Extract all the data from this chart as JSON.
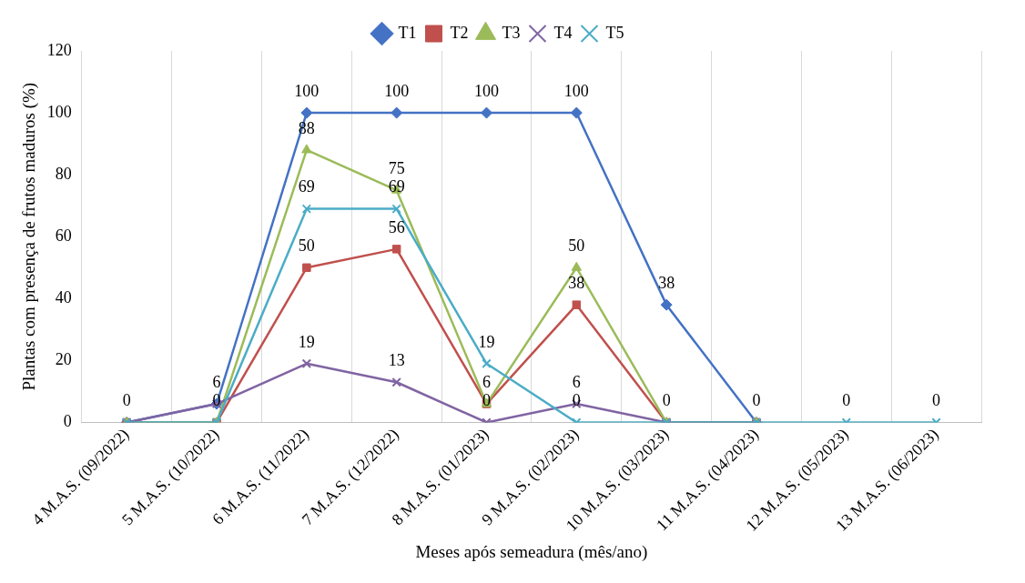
{
  "chart_data": {
    "type": "line",
    "xlabel": "Meses após semeadura (mês/ano)",
    "ylabel": "Plantas com presença de frutos maduros (%)",
    "categories": [
      "4 M.A.S. (09/2022)",
      "5 M.A.S. (10/2022)",
      "6 M.A.S. (11/2022)",
      "7 M.A.S. (12/2022)",
      "8 M.A.S. (01/2023)",
      "9 M.A.S. (02/2023)",
      "10 M.A.S. (03/2023)",
      "11 M.A.S. (04/2023)",
      "12 M.A.S. (05/2023)",
      "13 M.A.S. (06/2023)"
    ],
    "series": [
      {
        "name": "T1",
        "color": "#4472c4",
        "marker": "diamond",
        "values": [
          0,
          6,
          100,
          100,
          100,
          100,
          38,
          0,
          null,
          null
        ],
        "value_labels": [
          "0",
          "6",
          "100",
          "100",
          "100",
          "100",
          "38",
          "0",
          null,
          null
        ]
      },
      {
        "name": "T2",
        "color": "#c0504d",
        "marker": "square",
        "values": [
          0,
          0,
          50,
          56,
          6,
          38,
          0,
          0,
          null,
          null
        ],
        "value_labels": [
          null,
          "0",
          "50",
          "56",
          "6",
          "38",
          "0",
          null,
          null,
          null
        ]
      },
      {
        "name": "T3",
        "color": "#9bbb59",
        "marker": "triangle",
        "values": [
          0,
          0,
          88,
          75,
          6,
          50,
          0,
          0,
          null,
          null
        ],
        "value_labels": [
          null,
          null,
          "88",
          "75",
          null,
          "50",
          null,
          null,
          null,
          null
        ]
      },
      {
        "name": "T4",
        "color": "#8064a2",
        "marker": "cross",
        "values": [
          0,
          6,
          19,
          13,
          0,
          6,
          0,
          0,
          null,
          null
        ],
        "value_labels": [
          null,
          null,
          "19",
          "13",
          "0",
          "6",
          null,
          null,
          null,
          null
        ]
      },
      {
        "name": "T5",
        "color": "#4bacc6",
        "marker": "cross",
        "values": [
          0,
          0,
          69,
          69,
          19,
          0,
          0,
          0,
          0,
          0
        ],
        "value_labels": [
          null,
          null,
          "69",
          "69",
          "19",
          "0",
          null,
          null,
          "0",
          "0"
        ]
      }
    ],
    "ylim": [
      0,
      120
    ],
    "yticks": [
      0,
      20,
      40,
      60,
      80,
      100,
      120
    ],
    "grid": "x",
    "legend": "top"
  }
}
